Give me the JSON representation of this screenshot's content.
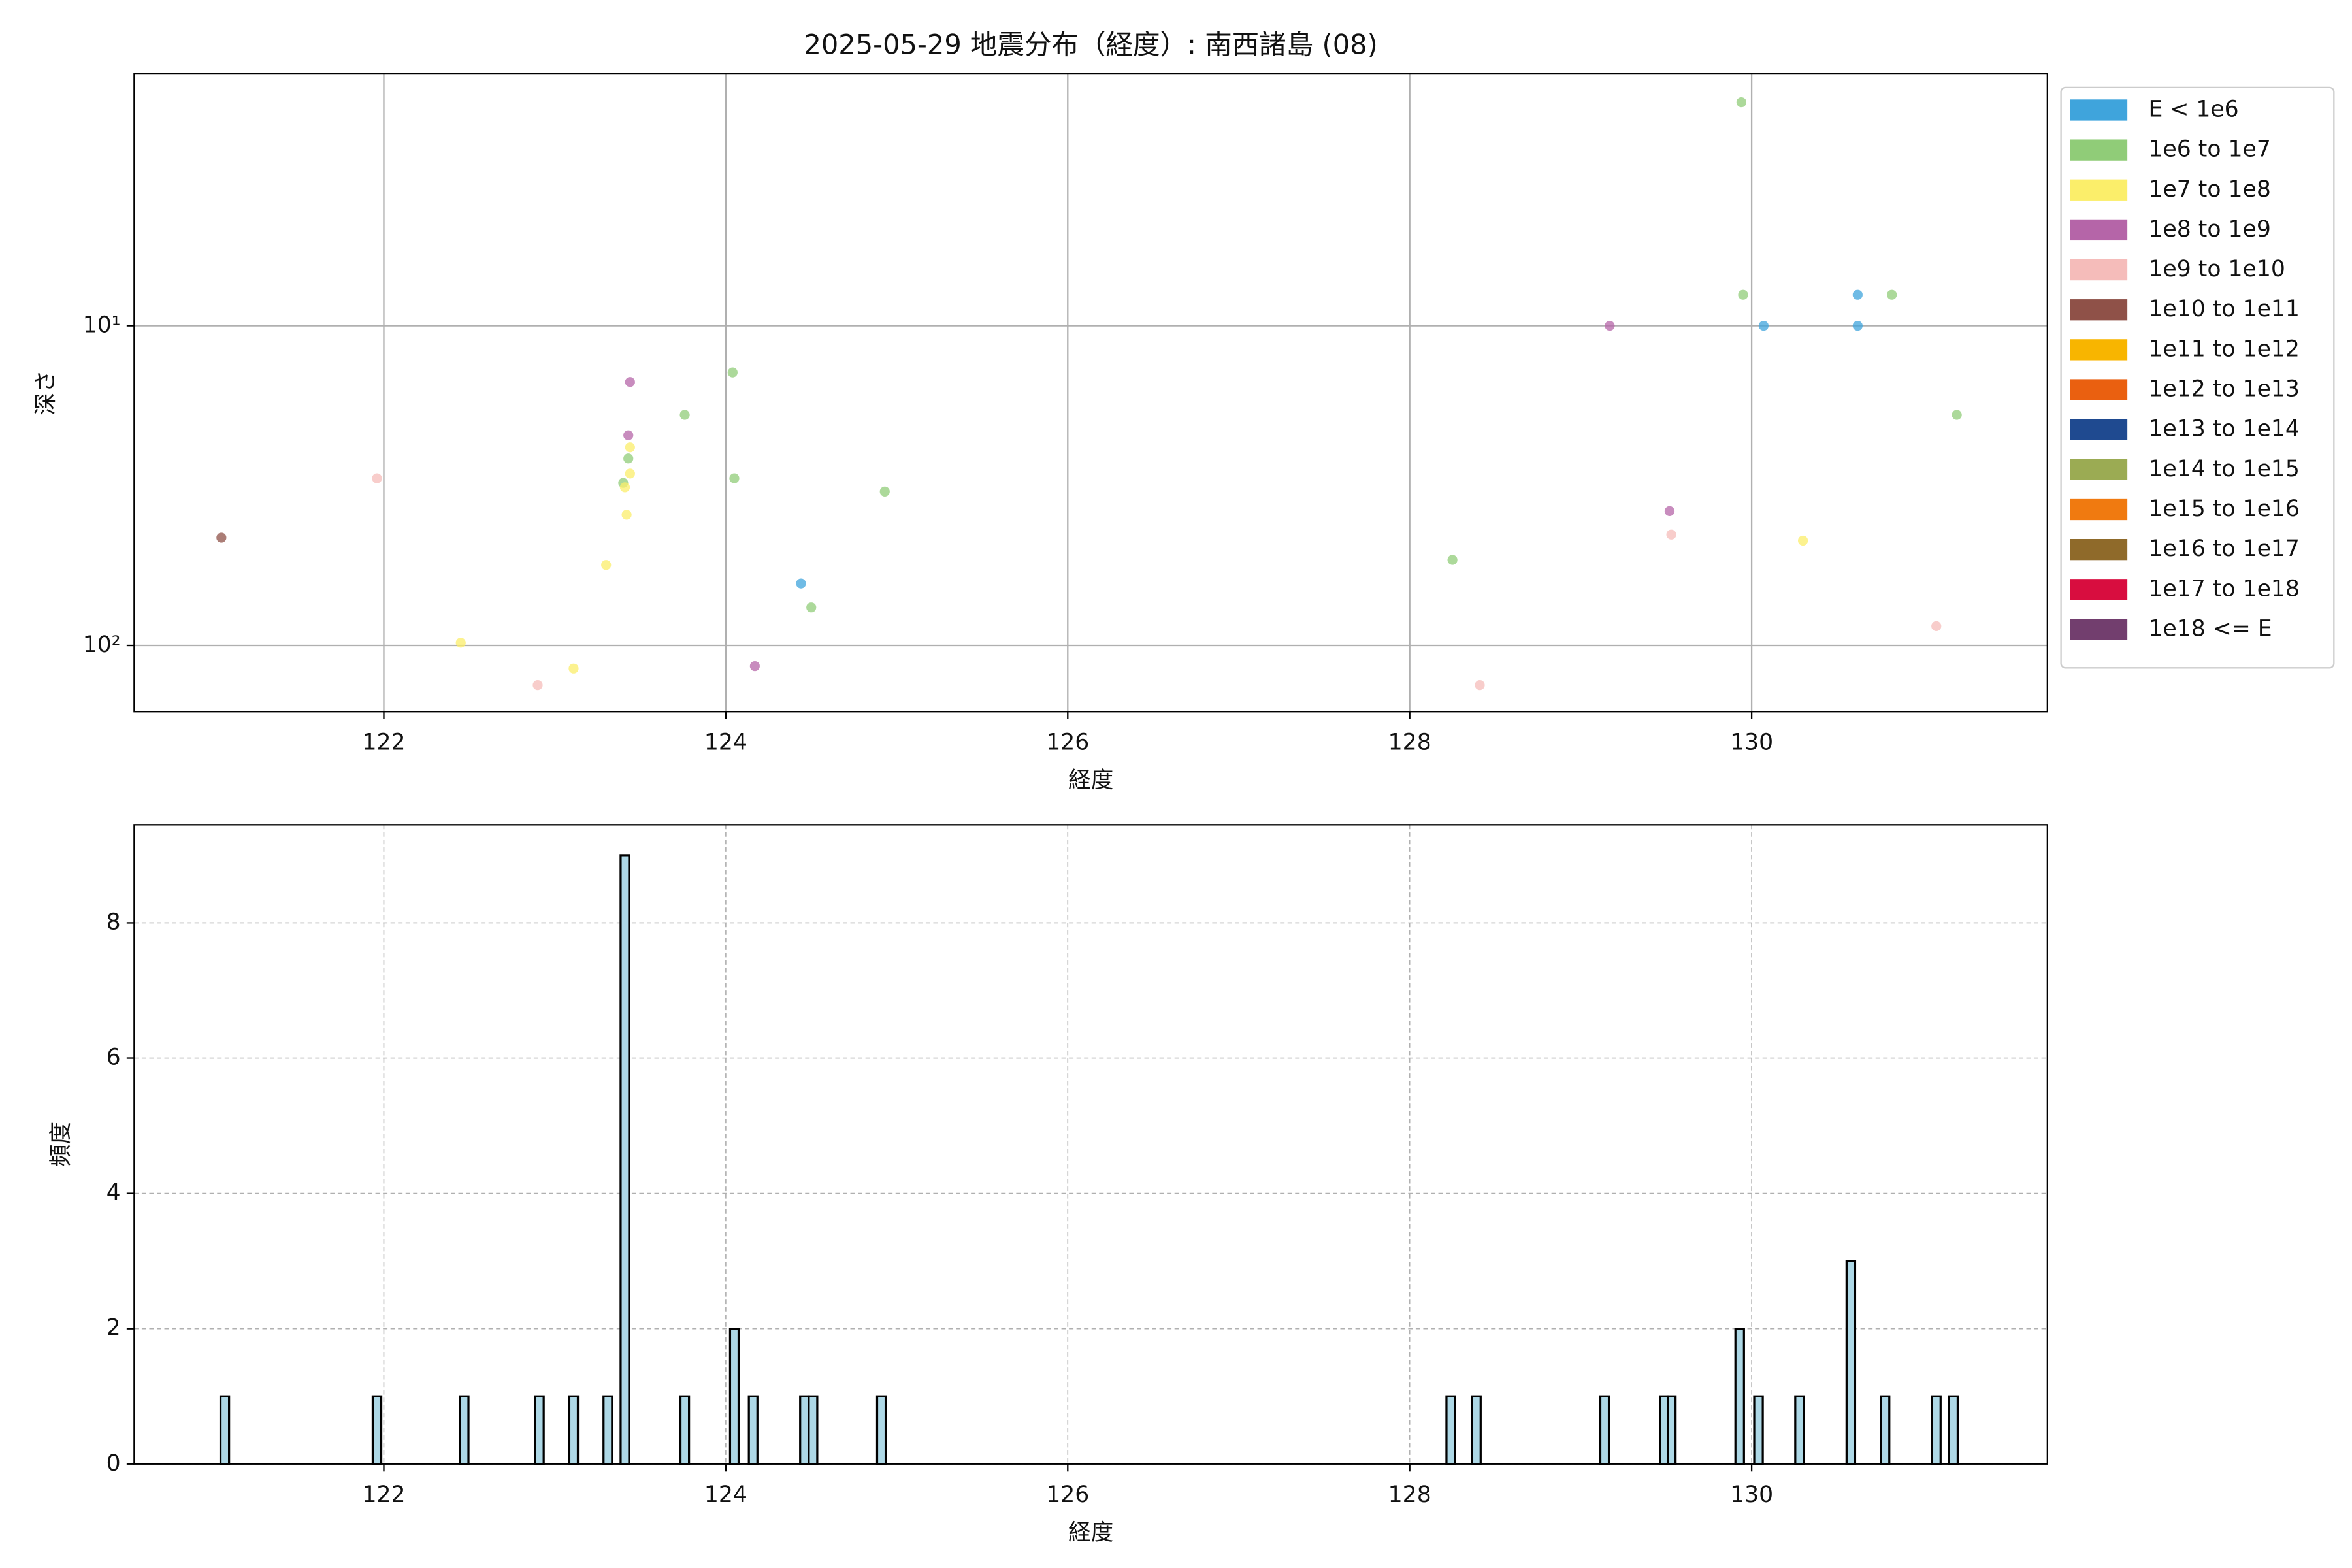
{
  "chart_data": [
    {
      "type": "scatter",
      "title": "2025-05-29 地震分布（経度）: 南西諸島 (08)",
      "xlabel": "経度",
      "ylabel": "深さ",
      "xlim": [
        120.54,
        131.73
      ],
      "xticks": [
        122,
        124,
        126,
        128,
        130
      ],
      "ylim": [
        1.63,
        161
      ],
      "yscale": "log",
      "invert_y": true,
      "yticks": [
        {
          "value": 10,
          "label": "10¹"
        },
        {
          "value": 100,
          "label": "10²"
        }
      ],
      "grid": true,
      "legend": "outside upper right",
      "series": [
        {
          "name": "E < 1e6",
          "color": "#3fa4dc",
          "x": [
            124.44,
            130.07,
            130.62,
            130.62
          ],
          "values": [
            64,
            10,
            8,
            10
          ]
        },
        {
          "name": "1e6 to 1e7",
          "color": "#90cc78",
          "x": [
            129.94,
            129.95,
            130.82,
            131.2,
            124.04,
            123.76,
            123.43,
            123.4,
            124.05,
            124.93,
            128.25,
            124.5
          ],
          "values": [
            2,
            8,
            8,
            19,
            14,
            19,
            26,
            31,
            30,
            33,
            54,
            76
          ]
        },
        {
          "name": "1e7 to 1e8",
          "color": "#fbee6a",
          "x": [
            123.44,
            123.44,
            123.41,
            123.42,
            123.3,
            122.45,
            123.11,
            130.3
          ],
          "values": [
            24,
            29,
            32,
            39,
            56,
            98,
            118,
            47
          ]
        },
        {
          "name": "1e8 to 1e9",
          "color": "#b565a8",
          "x": [
            123.44,
            123.43,
            129.17,
            129.52,
            124.17
          ],
          "values": [
            15,
            22,
            10,
            38,
            116
          ]
        },
        {
          "name": "1e9 to 1e10",
          "color": "#f5bcba",
          "x": [
            121.96,
            122.9,
            129.53,
            131.08,
            128.41
          ],
          "values": [
            30,
            133,
            45,
            87,
            133
          ]
        },
        {
          "name": "1e10 to 1e11",
          "color": "#8f5148",
          "x": [
            121.05
          ],
          "values": [
            46
          ]
        },
        {
          "name": "1e11 to 1e12",
          "color": "#f8b500",
          "x": [],
          "values": []
        },
        {
          "name": "1e12 to 1e13",
          "color": "#ea6010",
          "x": [],
          "values": []
        },
        {
          "name": "1e13 to 1e14",
          "color": "#1f4a90",
          "x": [],
          "values": []
        },
        {
          "name": "1e14 to 1e15",
          "color": "#9bab53",
          "x": [],
          "values": []
        },
        {
          "name": "1e15 to 1e16",
          "color": "#f07a10",
          "x": [],
          "values": []
        },
        {
          "name": "1e16 to 1e17",
          "color": "#8f6a2a",
          "x": [],
          "values": []
        },
        {
          "name": "1e17 to 1e18",
          "color": "#d80d3f",
          "x": [],
          "values": []
        },
        {
          "name": "1e18 <= E",
          "color": "#723e6e",
          "x": [],
          "values": []
        }
      ]
    },
    {
      "type": "histogram",
      "xlabel": "経度",
      "ylabel": "頻度",
      "color": "#add8e6",
      "edgecolor": "#000000",
      "xlim": [
        120.54,
        131.73
      ],
      "xticks": [
        122,
        124,
        126,
        128,
        130
      ],
      "ylim": [
        0,
        9.45
      ],
      "yticks": [
        0,
        2,
        4,
        6,
        8
      ],
      "grid": true,
      "bins": [
        121.045,
        121.095,
        121.935,
        121.985,
        122.445,
        122.495,
        122.885,
        122.935,
        123.085,
        123.135,
        123.285,
        123.335,
        123.385,
        123.435,
        123.735,
        123.785,
        124.025,
        124.075,
        124.135,
        124.185,
        124.435,
        124.485,
        124.535,
        124.885,
        124.935,
        128.215,
        128.265,
        128.365,
        128.415,
        129.115,
        129.165,
        129.465,
        129.51,
        129.555,
        129.905,
        129.955,
        130.015,
        130.065,
        130.255,
        130.305,
        130.555,
        130.605,
        130.755,
        130.805,
        131.055,
        131.105,
        131.155,
        131.205
      ],
      "counts": [
        1,
        0,
        1,
        0,
        1,
        0,
        1,
        0,
        1,
        0,
        1,
        0,
        9,
        0,
        1,
        0,
        2,
        0,
        1,
        0,
        1,
        1,
        0,
        1,
        0,
        1,
        0,
        1,
        0,
        1,
        0,
        1,
        1,
        0,
        2,
        0,
        1,
        0,
        1,
        0,
        3,
        0,
        1,
        0,
        1,
        0,
        1
      ]
    }
  ]
}
